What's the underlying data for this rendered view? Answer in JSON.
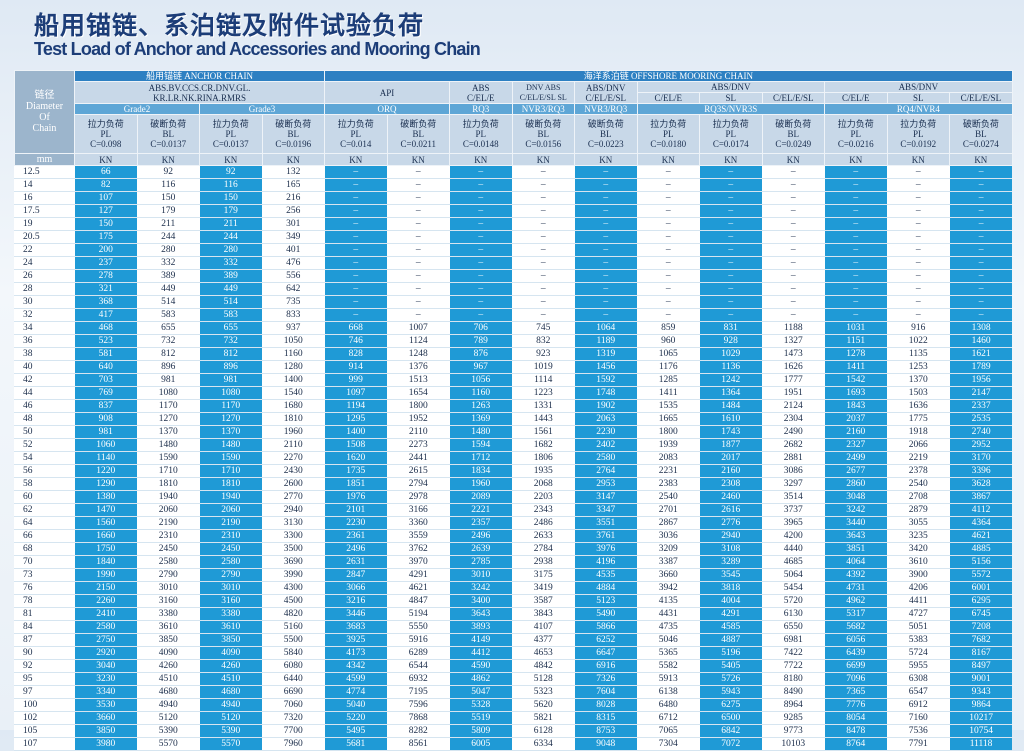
{
  "title": "船用锚链、系泊链及附件试验负荷",
  "subtitle": "Test Load of Anchor and Accessories and Mooring Chain",
  "header": {
    "diameter": [
      "链径",
      "Diameter",
      "Of",
      "Chain"
    ],
    "diameter_unit": "mm",
    "anchor_chain": "船用锚链  ANCHOR CHAIN",
    "offshore_chain": "海洋系泊链  OFFSHORE MOORING CHAIN",
    "anchor_societies": [
      "ABS.BV.CCS.CR.DNV.GL.",
      "KR.LR.NK.RINA.RMRS"
    ],
    "api": "API",
    "abs": [
      "ABS",
      "C/EL/E"
    ],
    "dnv": [
      "DNV ABS",
      "C/EL/E/SL SL"
    ],
    "abs_dnv": [
      "ABS/DNV",
      "C/EL/E/SL"
    ],
    "group1": "ABS/DNV",
    "group1_sub": [
      "C/EL/E",
      "SL",
      "C/EL/E/SL"
    ],
    "group2": "ABS/DNV",
    "group2_sub": [
      "C/EL/E",
      "SL",
      "C/EL/E/SL"
    ],
    "grades": [
      "Grade2",
      "Grade3",
      "ORQ",
      "RQ3",
      "NVR3/RQ3",
      "NVR3/RQ3",
      "RQ3S/NVR3S",
      "RQ4/NVR4"
    ],
    "columns": [
      {
        "name": "拉力负荷",
        "code": "PL",
        "coef": "C=0.098",
        "unit": "KN"
      },
      {
        "name": "破断负荷",
        "code": "BL",
        "coef": "C=0.0137",
        "unit": "KN"
      },
      {
        "name": "拉力负荷",
        "code": "PL",
        "coef": "C=0.0137",
        "unit": "KN"
      },
      {
        "name": "破断负荷",
        "code": "BL",
        "coef": "C=0.0196",
        "unit": "KN"
      },
      {
        "name": "拉力负荷",
        "code": "PL",
        "coef": "C=0.014",
        "unit": "KN"
      },
      {
        "name": "破断负荷",
        "code": "BL",
        "coef": "C=0.0211",
        "unit": "KN"
      },
      {
        "name": "拉力负荷",
        "code": "PL",
        "coef": "C=0.0148",
        "unit": "KN"
      },
      {
        "name": "破断负荷",
        "code": "BL",
        "coef": "C=0.0156",
        "unit": "KN"
      },
      {
        "name": "破断负荷",
        "code": "BL",
        "coef": "C=0.0223",
        "unit": "KN"
      },
      {
        "name": "拉力负荷",
        "code": "PL",
        "coef": "C=0.0180",
        "unit": "KN"
      },
      {
        "name": "拉力负荷",
        "code": "PL",
        "coef": "C=0.0174",
        "unit": "KN"
      },
      {
        "name": "破断负荷",
        "code": "BL",
        "coef": "C=0.0249",
        "unit": "KN"
      },
      {
        "name": "拉力负荷",
        "code": "PL",
        "coef": "C=0.0216",
        "unit": "KN"
      },
      {
        "name": "拉力负荷",
        "code": "PL",
        "coef": "C=0.0192",
        "unit": "KN"
      },
      {
        "name": "破断负荷",
        "code": "BL",
        "coef": "C=0.0274",
        "unit": "KN"
      }
    ]
  },
  "table": {
    "rows": [
      [
        12.5,
        66,
        92,
        92,
        132,
        "–",
        "–",
        "–",
        "–",
        "–",
        "–",
        "–",
        "–",
        "–",
        "–",
        "–"
      ],
      [
        14,
        82,
        116,
        116,
        165,
        "–",
        "–",
        "–",
        "–",
        "–",
        "–",
        "–",
        "–",
        "–",
        "–",
        "–"
      ],
      [
        16,
        107,
        150,
        150,
        216,
        "–",
        "–",
        "–",
        "–",
        "–",
        "–",
        "–",
        "–",
        "–",
        "–",
        "–"
      ],
      [
        17.5,
        127,
        179,
        179,
        256,
        "–",
        "–",
        "–",
        "–",
        "–",
        "–",
        "–",
        "–",
        "–",
        "–",
        "–"
      ],
      [
        19,
        150,
        211,
        211,
        301,
        "–",
        "–",
        "–",
        "–",
        "–",
        "–",
        "–",
        "–",
        "–",
        "–",
        "–"
      ],
      [
        20.5,
        175,
        244,
        244,
        349,
        "–",
        "–",
        "–",
        "–",
        "–",
        "–",
        "–",
        "–",
        "–",
        "–",
        "–"
      ],
      [
        22,
        200,
        280,
        280,
        401,
        "–",
        "–",
        "–",
        "–",
        "–",
        "–",
        "–",
        "–",
        "–",
        "–",
        "–"
      ],
      [
        24,
        237,
        332,
        332,
        476,
        "–",
        "–",
        "–",
        "–",
        "–",
        "–",
        "–",
        "–",
        "–",
        "–",
        "–"
      ],
      [
        26,
        278,
        389,
        389,
        556,
        "–",
        "–",
        "–",
        "–",
        "–",
        "–",
        "–",
        "–",
        "–",
        "–",
        "–"
      ],
      [
        28,
        321,
        449,
        449,
        642,
        "–",
        "–",
        "–",
        "–",
        "–",
        "–",
        "–",
        "–",
        "–",
        "–",
        "–"
      ],
      [
        30,
        368,
        514,
        514,
        735,
        "–",
        "–",
        "–",
        "–",
        "–",
        "–",
        "–",
        "–",
        "–",
        "–",
        "–"
      ],
      [
        32,
        417,
        583,
        583,
        833,
        "–",
        "–",
        "–",
        "–",
        "–",
        "–",
        "–",
        "–",
        "–",
        "–",
        "–"
      ],
      [
        34,
        468,
        655,
        655,
        937,
        668,
        1007,
        706,
        745,
        1064,
        859,
        831,
        1188,
        1031,
        916,
        1308
      ],
      [
        36,
        523,
        732,
        732,
        1050,
        746,
        1124,
        789,
        832,
        1189,
        960,
        928,
        1327,
        1151,
        1022,
        1460
      ],
      [
        38,
        581,
        812,
        812,
        1160,
        828,
        1248,
        876,
        923,
        1319,
        1065,
        1029,
        1473,
        1278,
        1135,
        1621
      ],
      [
        40,
        640,
        896,
        896,
        1280,
        914,
        1376,
        967,
        1019,
        1456,
        1176,
        1136,
        1626,
        1411,
        1253,
        1789
      ],
      [
        42,
        703,
        981,
        981,
        1400,
        999,
        1513,
        1056,
        1114,
        1592,
        1285,
        1242,
        1777,
        1542,
        1370,
        1956
      ],
      [
        44,
        769,
        1080,
        1080,
        1540,
        1097,
        1654,
        1160,
        1223,
        1748,
        1411,
        1364,
        1951,
        1693,
        1503,
        2147
      ],
      [
        46,
        837,
        1170,
        1170,
        1680,
        1194,
        1800,
        1263,
        1331,
        1902,
        1535,
        1484,
        2124,
        1843,
        1636,
        2337
      ],
      [
        48,
        908,
        1270,
        1270,
        1810,
        1295,
        1952,
        1369,
        1443,
        2063,
        1665,
        1610,
        2304,
        2037,
        1775,
        2535
      ],
      [
        50,
        981,
        1370,
        1370,
        1960,
        1400,
        2110,
        1480,
        1561,
        2230,
        1800,
        1743,
        2490,
        2160,
        1918,
        2740
      ],
      [
        52,
        1060,
        1480,
        1480,
        2110,
        1508,
        2273,
        1594,
        1682,
        2402,
        1939,
        1877,
        2682,
        2327,
        2066,
        2952
      ],
      [
        54,
        1140,
        1590,
        1590,
        2270,
        1620,
        2441,
        1712,
        1806,
        2580,
        2083,
        2017,
        2881,
        2499,
        2219,
        3170
      ],
      [
        56,
        1220,
        1710,
        1710,
        2430,
        1735,
        2615,
        1834,
        1935,
        2764,
        2231,
        2160,
        3086,
        2677,
        2378,
        3396
      ],
      [
        58,
        1290,
        1810,
        1810,
        2600,
        1851,
        2794,
        1960,
        2068,
        2953,
        2383,
        2308,
        3297,
        2860,
        2540,
        3628
      ],
      [
        60,
        1380,
        1940,
        1940,
        2770,
        1976,
        2978,
        2089,
        2203,
        3147,
        2540,
        2460,
        3514,
        3048,
        2708,
        3867
      ],
      [
        62,
        1470,
        2060,
        2060,
        2940,
        2101,
        3166,
        2221,
        2343,
        3347,
        2701,
        2616,
        3737,
        3242,
        2879,
        4112
      ],
      [
        64,
        1560,
        2190,
        2190,
        3130,
        2230,
        3360,
        2357,
        2486,
        3551,
        2867,
        2776,
        3965,
        3440,
        3055,
        4364
      ],
      [
        66,
        1660,
        2310,
        2310,
        3300,
        2361,
        3559,
        2496,
        2633,
        3761,
        3036,
        2940,
        4200,
        3643,
        3235,
        4621
      ],
      [
        68,
        1750,
        2450,
        2450,
        3500,
        2496,
        3762,
        2639,
        2784,
        3976,
        3209,
        3108,
        4440,
        3851,
        3420,
        4885
      ],
      [
        70,
        1840,
        2580,
        2580,
        3690,
        2631,
        3970,
        2785,
        2938,
        4196,
        3387,
        3289,
        4685,
        4064,
        3610,
        5156
      ],
      [
        73,
        1990,
        2790,
        2790,
        3990,
        2847,
        4291,
        3010,
        3175,
        4535,
        3660,
        3545,
        5064,
        4392,
        3900,
        5572
      ],
      [
        76,
        2150,
        3010,
        3010,
        4300,
        3066,
        4621,
        3242,
        3419,
        4884,
        3942,
        3818,
        5454,
        4731,
        4206,
        6001
      ],
      [
        78,
        2260,
        3160,
        3160,
        4500,
        3216,
        4847,
        3400,
        3587,
        5123,
        4135,
        4004,
        5720,
        4962,
        4411,
        6295
      ],
      [
        81,
        2410,
        3380,
        3380,
        4820,
        3446,
        5194,
        3643,
        3843,
        5490,
        4431,
        4291,
        6130,
        5317,
        4727,
        6745
      ],
      [
        84,
        2580,
        3610,
        3610,
        5160,
        3683,
        5550,
        3893,
        4107,
        5866,
        4735,
        4585,
        6550,
        5682,
        5051,
        7208
      ],
      [
        87,
        2750,
        3850,
        3850,
        5500,
        3925,
        5916,
        4149,
        4377,
        6252,
        5046,
        4887,
        6981,
        6056,
        5383,
        7682
      ],
      [
        90,
        2920,
        4090,
        4090,
        5840,
        4173,
        6289,
        4412,
        4653,
        6647,
        5365,
        5196,
        7422,
        6439,
        5724,
        8167
      ],
      [
        92,
        3040,
        4260,
        4260,
        6080,
        4342,
        6544,
        4590,
        4842,
        6916,
        5582,
        5405,
        7722,
        6699,
        5955,
        8497
      ],
      [
        95,
        3230,
        4510,
        4510,
        6440,
        4599,
        6932,
        4862,
        5128,
        7326,
        5913,
        5726,
        8180,
        7096,
        6308,
        9001
      ],
      [
        97,
        3340,
        4680,
        4680,
        6690,
        4774,
        7195,
        5047,
        5323,
        7604,
        6138,
        5943,
        8490,
        7365,
        6547,
        9343
      ],
      [
        100,
        3530,
        4940,
        4940,
        7060,
        5040,
        7596,
        5328,
        5620,
        8028,
        6480,
        6275,
        8964,
        7776,
        6912,
        9864
      ],
      [
        102,
        3660,
        5120,
        5120,
        7320,
        5220,
        7868,
        5519,
        5821,
        8315,
        6712,
        6500,
        9285,
        8054,
        7160,
        10217
      ],
      [
        105,
        3850,
        5390,
        5390,
        7700,
        5495,
        8282,
        5809,
        6128,
        8753,
        7065,
        6842,
        9773,
        8478,
        7536,
        10754
      ],
      [
        107,
        3980,
        5570,
        5570,
        7960,
        5681,
        8561,
        6005,
        6334,
        9048,
        7304,
        7072,
        10103,
        8764,
        7791,
        11118
      ]
    ]
  }
}
